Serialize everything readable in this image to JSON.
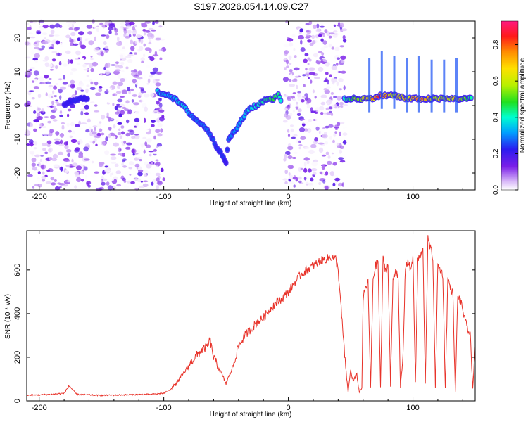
{
  "title": "S197.2026.054.14.09.C27",
  "chart_data": [
    {
      "type": "heatmap",
      "name": "spectrogram",
      "xlabel": "Height of straight line (km)",
      "ylabel": "Frequency (Hz)",
      "xlim": [
        -210,
        150
      ],
      "ylim": [
        -25,
        25
      ],
      "xticks": [
        -200,
        -100,
        0,
        100
      ],
      "yticks": [
        -20,
        -10,
        0,
        10,
        20
      ],
      "colorbar": {
        "label": "Normalized spectral amplitude",
        "range": [
          0,
          0.93
        ],
        "ticks": [
          0,
          0.2,
          0.4,
          0.6,
          0.8
        ]
      },
      "noise_regions": [
        {
          "x_start": -210,
          "x_end": -100
        },
        {
          "x_start": -3,
          "x_end": 46
        }
      ],
      "ridge_x": [
        -180,
        -170,
        -160,
        -105,
        -95,
        -85,
        -75,
        -65,
        -58,
        -52,
        -50,
        -48,
        -40,
        -32,
        -25,
        -18,
        -12,
        -8,
        -5,
        45,
        55,
        65,
        75,
        85,
        95,
        105,
        115,
        125,
        135,
        148
      ],
      "ridge_freq": [
        0,
        2,
        2,
        4,
        3,
        0,
        -4,
        -7,
        -12,
        -15,
        -17,
        -10,
        -6,
        -1,
        0,
        2,
        2,
        3,
        1,
        2,
        2,
        2,
        3,
        3,
        2,
        2,
        2,
        2,
        2,
        2
      ],
      "ridge_amp": [
        0.25,
        0.3,
        0.25,
        0.45,
        0.4,
        0.45,
        0.35,
        0.35,
        0.3,
        0.3,
        0.25,
        0.35,
        0.4,
        0.45,
        0.5,
        0.55,
        0.6,
        0.55,
        0.45,
        0.5,
        0.65,
        0.75,
        0.9,
        0.7,
        0.75,
        0.85,
        0.7,
        0.7,
        0.75,
        0.5
      ]
    },
    {
      "type": "line",
      "name": "snr",
      "xlabel": "Height of straight line (km)",
      "ylabel": "SNR (10 * v/v)",
      "xlim": [
        -210,
        150
      ],
      "ylim": [
        0,
        780
      ],
      "xticks": [
        -200,
        -100,
        0,
        100
      ],
      "yticks": [
        0,
        200,
        400,
        600
      ],
      "color": "#e8332a",
      "x": [
        -210,
        -190,
        -180,
        -176,
        -170,
        -150,
        -130,
        -110,
        -100,
        -95,
        -90,
        -85,
        -80,
        -75,
        -70,
        -65,
        -63,
        -60,
        -55,
        -50,
        -45,
        -40,
        -35,
        -30,
        -25,
        -20,
        -15,
        -10,
        -5,
        0,
        5,
        10,
        15,
        20,
        25,
        30,
        35,
        38,
        40,
        42,
        44,
        46,
        48,
        50,
        52,
        55,
        57,
        59,
        60,
        62,
        64,
        66,
        68,
        70,
        72,
        74,
        76,
        78,
        80,
        82,
        84,
        86,
        88,
        90,
        92,
        94,
        96,
        98,
        100,
        102,
        104,
        106,
        108,
        110,
        112,
        114,
        116,
        118,
        120,
        122,
        124,
        126,
        128,
        130,
        132,
        134,
        136,
        138,
        140,
        142,
        144,
        146,
        148,
        150
      ],
      "y": [
        25,
        30,
        35,
        70,
        30,
        25,
        28,
        30,
        35,
        50,
        80,
        120,
        160,
        200,
        230,
        250,
        280,
        200,
        140,
        80,
        150,
        250,
        300,
        330,
        360,
        380,
        420,
        450,
        470,
        500,
        540,
        580,
        600,
        620,
        640,
        650,
        660,
        650,
        600,
        450,
        300,
        150,
        40,
        140,
        90,
        120,
        40,
        60,
        470,
        520,
        540,
        60,
        560,
        620,
        640,
        60,
        650,
        600,
        620,
        70,
        560,
        600,
        580,
        60,
        200,
        620,
        640,
        600,
        660,
        80,
        650,
        660,
        690,
        80,
        740,
        700,
        660,
        60,
        620,
        600,
        580,
        60,
        560,
        520,
        500,
        40,
        480,
        460,
        420,
        360,
        330,
        300,
        60,
        250
      ]
    }
  ]
}
